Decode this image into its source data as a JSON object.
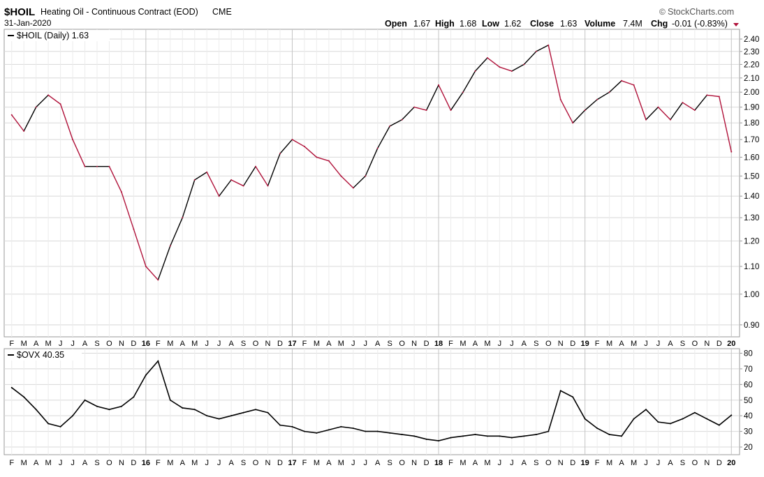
{
  "header": {
    "symbol": "$HOIL",
    "description": "Heating Oil - Continuous Contract (EOD)",
    "exchange": "CME",
    "date": "31-Jan-2020",
    "brand": "StockCharts.com",
    "brand_symbol": "©",
    "quote": {
      "open_label": "Open",
      "open": "1.67",
      "high_label": "High",
      "high": "1.68",
      "low_label": "Low",
      "low": "1.62",
      "close_label": "Close",
      "close": "1.63",
      "volume_label": "Volume",
      "volume": "7.4M",
      "chg_label": "Chg",
      "chg": "-0.01 (-0.83%)"
    }
  },
  "colors": {
    "up": "#000000",
    "down": "#b0123a",
    "grid": "#d8d8d8",
    "frame": "#9a9a9a",
    "ovx_line": "#000000",
    "chg_arrow": "#b0123a"
  },
  "chart_data": [
    {
      "type": "line",
      "legend": "$HOIL (Daily) 1.63",
      "y_ticks": [
        "2.40",
        "2.30",
        "2.20",
        "2.10",
        "2.00",
        "1.90",
        "1.80",
        "1.70",
        "1.60",
        "1.50",
        "1.40",
        "1.30",
        "1.20",
        "1.10",
        "1.00",
        "0.90"
      ],
      "scale": "log",
      "ylim": [
        0.87,
        2.47
      ],
      "grid": true,
      "series": [
        {
          "x": [
            "2015-02",
            "2015-03",
            "2015-04",
            "2015-05",
            "2015-06",
            "2015-07",
            "2015-08",
            "2015-09",
            "2015-10",
            "2015-11",
            "2015-12",
            "2016-01",
            "2016-02",
            "2016-03",
            "2016-04",
            "2016-05",
            "2016-06",
            "2016-07",
            "2016-08",
            "2016-09",
            "2016-10",
            "2016-11",
            "2016-12",
            "2017-01",
            "2017-02",
            "2017-03",
            "2017-04",
            "2017-05",
            "2017-06",
            "2017-07",
            "2017-08",
            "2017-09",
            "2017-10",
            "2017-11",
            "2017-12",
            "2018-01",
            "2018-02",
            "2018-03",
            "2018-04",
            "2018-05",
            "2018-06",
            "2018-07",
            "2018-08",
            "2018-09",
            "2018-10",
            "2018-11",
            "2018-12",
            "2019-01",
            "2019-02",
            "2019-03",
            "2019-04",
            "2019-05",
            "2019-06",
            "2019-07",
            "2019-08",
            "2019-09",
            "2019-10",
            "2019-11",
            "2019-12",
            "2020-01"
          ],
          "values": [
            1.85,
            1.75,
            1.9,
            1.98,
            1.92,
            1.7,
            1.55,
            1.55,
            1.55,
            1.42,
            1.25,
            1.1,
            1.05,
            1.18,
            1.3,
            1.48,
            1.52,
            1.4,
            1.48,
            1.45,
            1.55,
            1.45,
            1.62,
            1.7,
            1.66,
            1.6,
            1.58,
            1.5,
            1.44,
            1.5,
            1.65,
            1.78,
            1.82,
            1.9,
            1.88,
            2.05,
            1.88,
            2.0,
            2.15,
            2.25,
            2.18,
            2.15,
            2.2,
            2.3,
            2.35,
            1.95,
            1.8,
            1.88,
            1.95,
            2.0,
            2.08,
            2.05,
            1.82,
            1.9,
            1.82,
            1.93,
            1.88,
            1.98,
            1.97,
            1.63
          ]
        }
      ]
    },
    {
      "type": "line",
      "legend": "$OVX 40.35",
      "y_ticks": [
        "80",
        "70",
        "60",
        "50",
        "40",
        "30",
        "20"
      ],
      "ylim": [
        16,
        82
      ],
      "grid": true,
      "series": [
        {
          "x": [
            "2015-02",
            "2015-03",
            "2015-04",
            "2015-05",
            "2015-06",
            "2015-07",
            "2015-08",
            "2015-09",
            "2015-10",
            "2015-11",
            "2015-12",
            "2016-01",
            "2016-02",
            "2016-03",
            "2016-04",
            "2016-05",
            "2016-06",
            "2016-07",
            "2016-08",
            "2016-09",
            "2016-10",
            "2016-11",
            "2016-12",
            "2017-01",
            "2017-02",
            "2017-03",
            "2017-04",
            "2017-05",
            "2017-06",
            "2017-07",
            "2017-08",
            "2017-09",
            "2017-10",
            "2017-11",
            "2017-12",
            "2018-01",
            "2018-02",
            "2018-03",
            "2018-04",
            "2018-05",
            "2018-06",
            "2018-07",
            "2018-08",
            "2018-09",
            "2018-10",
            "2018-11",
            "2018-12",
            "2019-01",
            "2019-02",
            "2019-03",
            "2019-04",
            "2019-05",
            "2019-06",
            "2019-07",
            "2019-08",
            "2019-09",
            "2019-10",
            "2019-11",
            "2019-12",
            "2020-01"
          ],
          "values": [
            58,
            52,
            44,
            35,
            33,
            40,
            50,
            46,
            44,
            46,
            52,
            66,
            75,
            50,
            45,
            44,
            40,
            38,
            40,
            42,
            44,
            42,
            34,
            33,
            30,
            29,
            31,
            33,
            32,
            30,
            30,
            29,
            28,
            27,
            25,
            24,
            26,
            27,
            28,
            27,
            27,
            26,
            27,
            28,
            30,
            56,
            52,
            38,
            32,
            28,
            27,
            38,
            44,
            36,
            35,
            38,
            42,
            38,
            34,
            40.35
          ]
        }
      ]
    }
  ],
  "x_axis": {
    "ticks_top": [
      "F",
      "M",
      "A",
      "M",
      "J",
      "J",
      "A",
      "S",
      "O",
      "N",
      "D",
      "16",
      "F",
      "M",
      "A",
      "M",
      "J",
      "J",
      "A",
      "S",
      "O",
      "N",
      "D",
      "17",
      "F",
      "M",
      "A",
      "M",
      "J",
      "J",
      "A",
      "S",
      "O",
      "N",
      "D",
      "18",
      "F",
      "M",
      "A",
      "M",
      "J",
      "J",
      "A",
      "S",
      "O",
      "N",
      "D",
      "19",
      "F",
      "M",
      "A",
      "M",
      "J",
      "J",
      "A",
      "S",
      "O",
      "N",
      "D",
      "20"
    ],
    "year_ticks": [
      "16",
      "17",
      "18",
      "19",
      "20"
    ]
  }
}
